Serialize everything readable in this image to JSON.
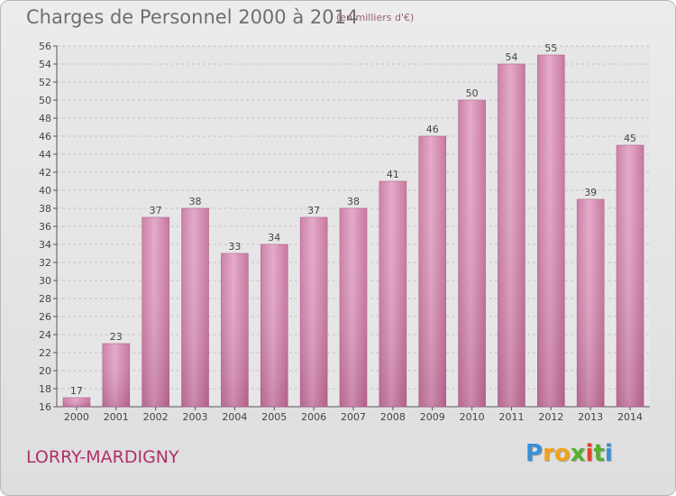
{
  "chart_data": {
    "type": "bar",
    "title": "Charges de Personnel 2000 à 2014",
    "subtitle": "(en milliers d'€)",
    "categories": [
      "2000",
      "2001",
      "2002",
      "2003",
      "2004",
      "2005",
      "2006",
      "2007",
      "2008",
      "2009",
      "2010",
      "2011",
      "2012",
      "2013",
      "2014"
    ],
    "values": [
      17,
      23,
      37,
      38,
      33,
      34,
      37,
      38,
      41,
      46,
      50,
      54,
      55,
      39,
      45
    ],
    "ylim": [
      16,
      56
    ],
    "yticks": [
      16,
      18,
      20,
      22,
      24,
      26,
      28,
      30,
      32,
      34,
      36,
      38,
      40,
      42,
      44,
      46,
      48,
      50,
      52,
      54,
      56
    ],
    "grid": "horizontal dashed",
    "bar_color": "#d88fb5",
    "xlabel": "",
    "ylabel": ""
  },
  "footer": {
    "commune": "LORRY-MARDIGNY",
    "logo_letters": [
      "P",
      "r",
      "o",
      "x",
      "i",
      "t",
      "i"
    ],
    "logo_colors": [
      "#3a8fd6",
      "#f2a21a",
      "#f2a21a",
      "#56b030",
      "#e0442c",
      "#56b030",
      "#3a8fd6"
    ]
  }
}
